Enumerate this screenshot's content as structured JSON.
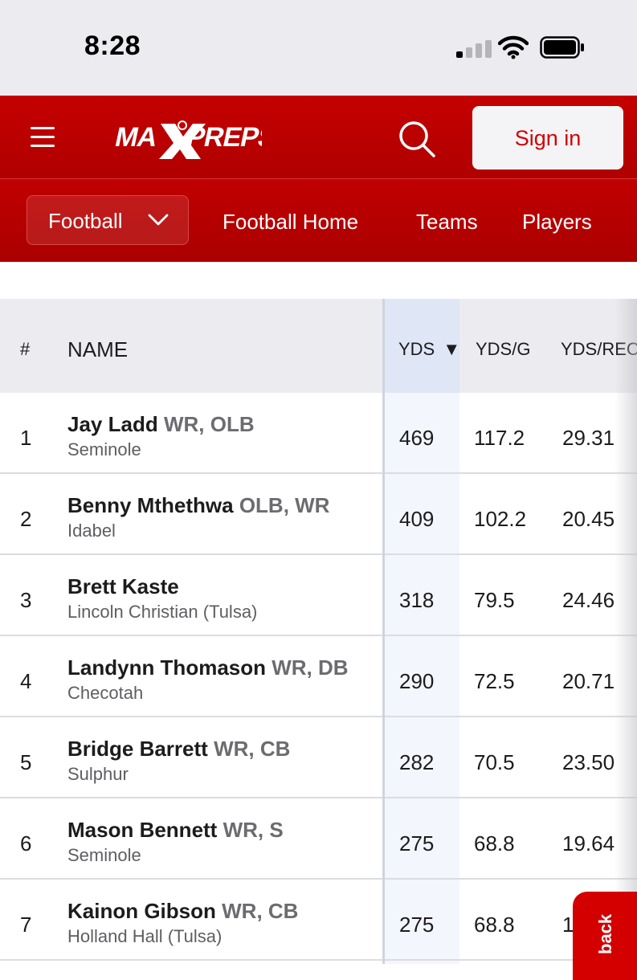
{
  "status_bar": {
    "time": "8:28",
    "icons": [
      "signal-icon",
      "wifi-icon",
      "battery-icon"
    ]
  },
  "header": {
    "logo": "MAXPREPS",
    "sign_in": "Sign in",
    "icons": [
      "menu-icon",
      "search-icon"
    ]
  },
  "subnav": {
    "sport": "Football",
    "links": [
      "Football Home",
      "Teams",
      "Players"
    ]
  },
  "table": {
    "columns": {
      "rank": "#",
      "name": "NAME",
      "yds": "YDS",
      "sort_indicator": "▼",
      "yds_per_game": "YDS/G",
      "yds_per_rec": "YDS/REC"
    },
    "rows": [
      {
        "rank": "1",
        "name": "Jay Ladd",
        "position": "WR, OLB",
        "school": "Seminole",
        "yds": "469",
        "yds_g": "117.2",
        "yds_rec": "29.31"
      },
      {
        "rank": "2",
        "name": "Benny Mthethwa",
        "position": "OLB, WR",
        "school": "Idabel",
        "yds": "409",
        "yds_g": "102.2",
        "yds_rec": "20.45"
      },
      {
        "rank": "3",
        "name": "Brett Kaste",
        "position": "",
        "school": "Lincoln Christian (Tulsa)",
        "yds": "318",
        "yds_g": "79.5",
        "yds_rec": "24.46"
      },
      {
        "rank": "4",
        "name": "Landynn Thomason",
        "position": "WR, DB",
        "school": "Checotah",
        "yds": "290",
        "yds_g": "72.5",
        "yds_rec": "20.71"
      },
      {
        "rank": "5",
        "name": "Bridge Barrett",
        "position": "WR, CB",
        "school": "Sulphur",
        "yds": "282",
        "yds_g": "70.5",
        "yds_rec": "23.50"
      },
      {
        "rank": "6",
        "name": "Mason Bennett",
        "position": "WR, S",
        "school": "Seminole",
        "yds": "275",
        "yds_g": "68.8",
        "yds_rec": "19.64"
      },
      {
        "rank": "7",
        "name": "Kainon Gibson",
        "position": "WR, CB",
        "school": "Holland Hall (Tulsa)",
        "yds": "275",
        "yds_g": "68.8",
        "yds_rec": "1"
      }
    ]
  },
  "feedback": {
    "label": "back"
  },
  "colors": {
    "brand_red": "#c50000",
    "sign_in_text": "#d30000",
    "yds_highlight": "#dfe6f5"
  }
}
